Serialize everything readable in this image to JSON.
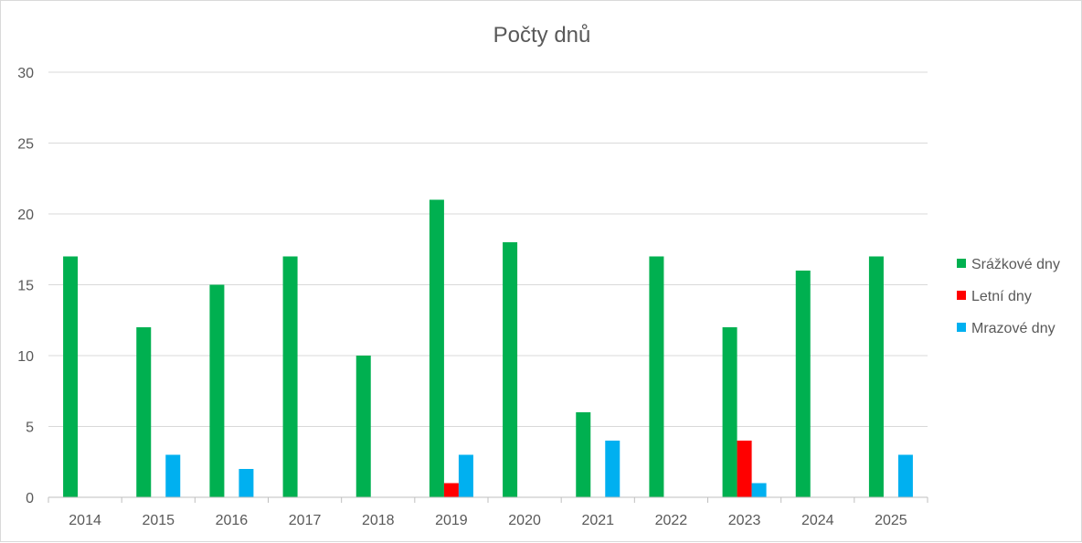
{
  "chart_data": {
    "type": "bar",
    "title": "Počty dnů",
    "categories": [
      "2014",
      "2015",
      "2016",
      "2017",
      "2018",
      "2019",
      "2020",
      "2021",
      "2022",
      "2023",
      "2024",
      "2025"
    ],
    "series": [
      {
        "name": "Srážkové dny",
        "color": "#00b050",
        "values": [
          17,
          12,
          15,
          17,
          10,
          21,
          18,
          6,
          17,
          12,
          16,
          17
        ]
      },
      {
        "name": "Letní dny",
        "color": "#ff0000",
        "values": [
          0,
          0,
          0,
          0,
          0,
          1,
          0,
          0,
          0,
          4,
          0,
          0
        ]
      },
      {
        "name": "Mrazové dny",
        "color": "#00b0f0",
        "values": [
          0,
          3,
          2,
          0,
          0,
          3,
          0,
          4,
          0,
          1,
          0,
          3
        ]
      }
    ],
    "ylim": [
      0,
      30
    ],
    "yticks": [
      0,
      5,
      10,
      15,
      20,
      25,
      30
    ],
    "grid": true,
    "legend": "right"
  }
}
